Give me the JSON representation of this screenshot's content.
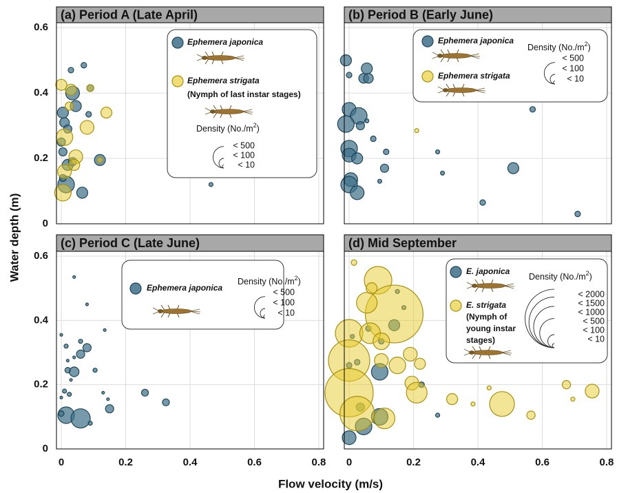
{
  "axes": {
    "xlabel": "Flow velocity (m/s)",
    "ylabel": "Water depth (m)"
  },
  "chart_data": [
    {
      "type": "scatter",
      "title": "(a) Period A (Late April)",
      "xlim": [
        -0.015,
        0.815
      ],
      "ylim": [
        0,
        0.615
      ],
      "xticks": [
        0,
        0.2,
        0.4,
        0.6,
        0.8
      ],
      "yticks": [
        0,
        0.2,
        0.4,
        0.6
      ],
      "xtick_labels": false,
      "ytick_labels": true,
      "grid": true,
      "series": [
        {
          "name": "Ephemera japonica",
          "color": "#3d6f88",
          "x": [
            0.03,
            0.07,
            0.035,
            0.045,
            0.005,
            0.01,
            0.02,
            0,
            0.005,
            0.02,
            0.035,
            0.015,
            0.065,
            0.12,
            0.085,
            0.465,
            0.005,
            0.09
          ],
          "y": [
            0.47,
            0.485,
            0.4,
            0.36,
            0.34,
            0.31,
            0.29,
            0.25,
            0.22,
            0.18,
            0.19,
            0.12,
            0.095,
            0.195,
            0.335,
            0.12,
            0.14,
            0.415
          ],
          "size": [
            33,
            33,
            204,
            131,
            131,
            100,
            73,
            73,
            73,
            131,
            73,
            294,
            131,
            131,
            33,
            18,
            51,
            51
          ]
        },
        {
          "name": "Ephemera strigata",
          "note": [
            "(Nymph of last instar stages)"
          ],
          "color": "#e6cb2c",
          "x": [
            0,
            0.03,
            0.09,
            0.14,
            0.08,
            0.01,
            0.005,
            0.01,
            0.045,
            0.04,
            0.025,
            0.12
          ],
          "y": [
            0.425,
            0.41,
            0.415,
            0.34,
            0.295,
            0.265,
            0.095,
            0.16,
            0.205,
            0.18,
            0.36,
            0.195
          ],
          "size": [
            131,
            131,
            51,
            131,
            204,
            294,
            294,
            204,
            204,
            131,
            73,
            33
          ]
        }
      ],
      "size_title": "Density (No./m",
      "size_title_sup": "2",
      "size_title_end": ")",
      "size_legend": [
        {
          "value": 500,
          "label": "< 500"
        },
        {
          "value": 100,
          "label": "< 100"
        },
        {
          "value": 10,
          "label": "< 10"
        }
      ]
    },
    {
      "type": "scatter",
      "title": "(b) Period B (Early June)",
      "xlim": [
        -0.015,
        0.815
      ],
      "ylim": [
        0,
        0.615
      ],
      "xticks": [
        0,
        0.2,
        0.4,
        0.6,
        0.8
      ],
      "yticks": [
        0,
        0.2,
        0.4,
        0.6
      ],
      "xtick_labels": false,
      "ytick_labels": false,
      "grid": true,
      "series": [
        {
          "name": "Ephemera japonica",
          "color": "#3d6f88",
          "x": [
            -0.01,
            0,
            0.055,
            0.045,
            0.06,
            0,
            0.03,
            -0.01,
            0.035,
            0.055,
            0,
            0,
            0.025,
            0.005,
            0,
            0.025,
            0.075,
            0.115,
            0.11,
            0.095,
            0.275,
            0.29,
            0.51,
            0.415,
            0.57,
            0.71
          ],
          "y": [
            0.5,
            0.455,
            0.475,
            0.445,
            0.445,
            0.35,
            0.33,
            0.305,
            0.3,
            0.315,
            0.23,
            0.21,
            0.2,
            0.135,
            0.12,
            0.095,
            0.26,
            0.22,
            0.17,
            0.13,
            0.22,
            0.155,
            0.17,
            0.065,
            0.35,
            0.03
          ],
          "size": [
            131,
            33,
            131,
            100,
            100,
            204,
            294,
            294,
            73,
            18,
            294,
            204,
            131,
            204,
            294,
            204,
            33,
            33,
            73,
            18,
            18,
            18,
            131,
            33,
            33,
            33
          ]
        },
        {
          "name": "Ephemera strigata",
          "color": "#e6cb2c",
          "x": [
            0.21
          ],
          "y": [
            0.285
          ],
          "size": [
            18
          ]
        }
      ],
      "size_title": "Density (No./m",
      "size_title_sup": "2",
      "size_title_end": ")",
      "size_legend": [
        {
          "value": 500,
          "label": "< 500"
        },
        {
          "value": 100,
          "label": "< 100"
        },
        {
          "value": 10,
          "label": "< 10"
        }
      ]
    },
    {
      "type": "scatter",
      "title": "(c) Period C (Late June)",
      "xlim": [
        -0.015,
        0.815
      ],
      "ylim": [
        0,
        0.615
      ],
      "xticks": [
        0,
        0.2,
        0.4,
        0.6,
        0.8
      ],
      "yticks": [
        0,
        0.2,
        0.4,
        0.6
      ],
      "xtick_labels": true,
      "ytick_labels": true,
      "grid": true,
      "series": [
        {
          "name": "Ephemera japonica",
          "color": "#3d6f88",
          "x": [
            0.04,
            0.08,
            0,
            0.135,
            0.015,
            0.06,
            0.08,
            0.06,
            0.02,
            0.04,
            0.02,
            0.04,
            0.105,
            0.03,
            0.01,
            0.025,
            0.13,
            0.145,
            0.15,
            0.015,
            0.06,
            0.09,
            0.26,
            0.325,
            0,
            0
          ],
          "y": [
            0.535,
            0.45,
            0.355,
            0.37,
            0.32,
            0.335,
            0.315,
            0.295,
            0.275,
            0.285,
            0.245,
            0.24,
            0.245,
            0.215,
            0.18,
            0.17,
            0.175,
            0.155,
            0.125,
            0.105,
            0.095,
            0.08,
            0.175,
            0.145,
            0.16,
            0.11
          ],
          "size": [
            8,
            8,
            8,
            8,
            18,
            18,
            73,
            73,
            8,
            8,
            33,
            100,
            18,
            8,
            18,
            18,
            8,
            8,
            73,
            294,
            400,
            18,
            51,
            51,
            8,
            33
          ]
        }
      ],
      "size_title": "Density (No./m",
      "size_title_sup": "2",
      "size_title_end": ")",
      "size_legend": [
        {
          "value": 500,
          "label": "< 500"
        },
        {
          "value": 100,
          "label": "< 100"
        },
        {
          "value": 10,
          "label": "< 10"
        }
      ]
    },
    {
      "type": "scatter",
      "title": "(d) Mid September",
      "xlim": [
        -0.015,
        0.815
      ],
      "ylim": [
        0,
        0.615
      ],
      "xticks": [
        0,
        0.2,
        0.4,
        0.6,
        0.8
      ],
      "yticks": [
        0,
        0.2,
        0.4,
        0.6
      ],
      "xtick_labels": true,
      "ytick_labels": false,
      "grid": true,
      "series": [
        {
          "name": "E. japonica",
          "color": "#3d6f88",
          "x": [
            0,
            0.045,
            0.035,
            0.095,
            0.095,
            0,
            0.01,
            0.06,
            0.14,
            0.17,
            0.15,
            0.225,
            0.275,
            0.025,
            0.1
          ],
          "y": [
            0.035,
            0.07,
            0.13,
            0.1,
            0.24,
            0.26,
            0.35,
            0.375,
            0.385,
            0.44,
            0.49,
            0.2,
            0.105,
            0.27,
            0.335
          ],
          "size": [
            111,
            160,
            40,
            160,
            160,
            18,
            10,
            18,
            71,
            10,
            10,
            18,
            10,
            18,
            18
          ]
        },
        {
          "name": "E. strigata",
          "note": [
            "(Nymph of",
            "young instar",
            "stages)"
          ],
          "color": "#e6cb2c",
          "x": [
            0.015,
            0.09,
            0.14,
            0,
            0.065,
            0.055,
            0.1,
            0.1,
            0,
            0,
            0.025,
            0.11,
            0.15,
            0.19,
            0.22,
            0.195,
            0.21,
            0.32,
            0.385,
            0.435,
            0.475,
            0.565,
            0.675,
            0.695,
            0.755,
            0.07
          ],
          "y": [
            0.58,
            0.525,
            0.42,
            0.36,
            0.36,
            0.455,
            0.335,
            0.275,
            0.275,
            0.175,
            0.11,
            0.095,
            0.26,
            0.295,
            0.265,
            0.205,
            0.175,
            0.155,
            0.14,
            0.19,
            0.14,
            0.105,
            0.2,
            0.155,
            0.18,
            0.5
          ],
          "size": [
            18,
            443,
            1950,
            443,
            249,
            249,
            160,
            111,
            997,
            1357,
            693,
            249,
            160,
            111,
            71,
            111,
            249,
            71,
            10,
            10,
            359,
            40,
            40,
            10,
            111,
            71
          ]
        }
      ],
      "size_title": "Density (No./m",
      "size_title_sup": "2",
      "size_title_end": ")",
      "size_legend": [
        {
          "value": 2000,
          "label": "< 2000"
        },
        {
          "value": 1500,
          "label": "< 1500"
        },
        {
          "value": 1000,
          "label": "< 1000"
        },
        {
          "value": 500,
          "label": "< 500"
        },
        {
          "value": 100,
          "label": "< 100"
        },
        {
          "value": 10,
          "label": "< 10"
        }
      ]
    }
  ]
}
